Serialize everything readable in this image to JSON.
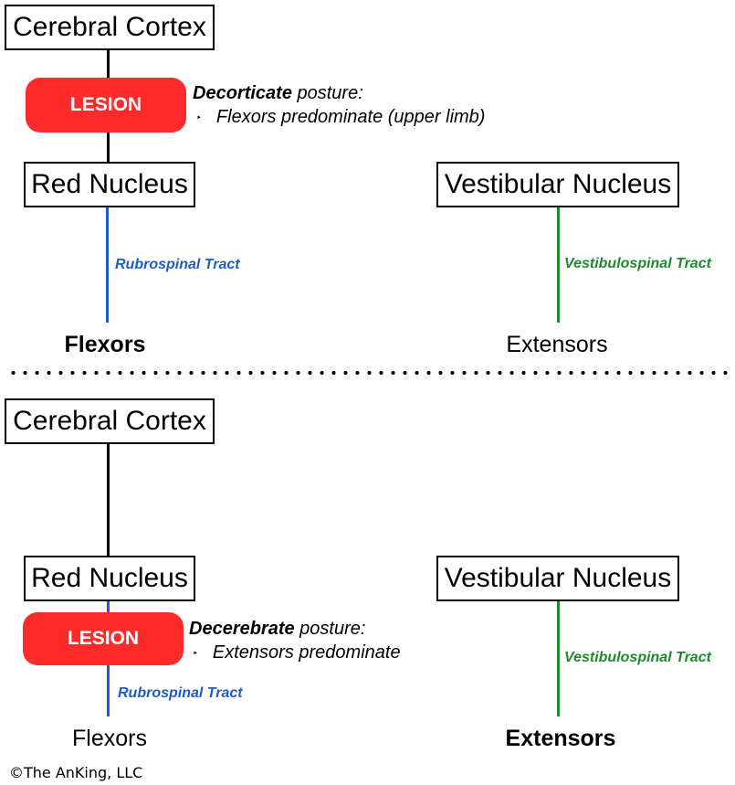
{
  "panels": [
    {
      "cortex": "Cerebral Cortex",
      "red_nucleus": "Red Nucleus",
      "vestibular_nucleus": "Vestibular Nucleus",
      "lesion": "LESION",
      "posture_bold": "Decorticate",
      "posture_word": " posture:",
      "posture_bullet": "Flexors predominate (upper limb)",
      "rubrospinal": "Rubrospinal Tract",
      "vestibulospinal": "Vestibulospinal Tract",
      "flexors": "Flexors",
      "extensors": "Extensors"
    },
    {
      "cortex": "Cerebral Cortex",
      "red_nucleus": "Red Nucleus",
      "vestibular_nucleus": "Vestibular Nucleus",
      "lesion": "LESION",
      "posture_bold": "Decerebrate",
      "posture_word": " posture:",
      "posture_bullet": "Extensors predominate",
      "rubrospinal": "Rubrospinal Tract",
      "vestibulospinal": "Vestibulospinal Tract",
      "flexors": "Flexors",
      "extensors": "Extensors"
    }
  ],
  "bullet_glyph": "‣",
  "copyright": "©The AnKing, LLC",
  "colors": {
    "lesion": "#ff2a2a",
    "rubrospinal": "#1f5bc6",
    "vestibulospinal": "#1d8a2e"
  }
}
